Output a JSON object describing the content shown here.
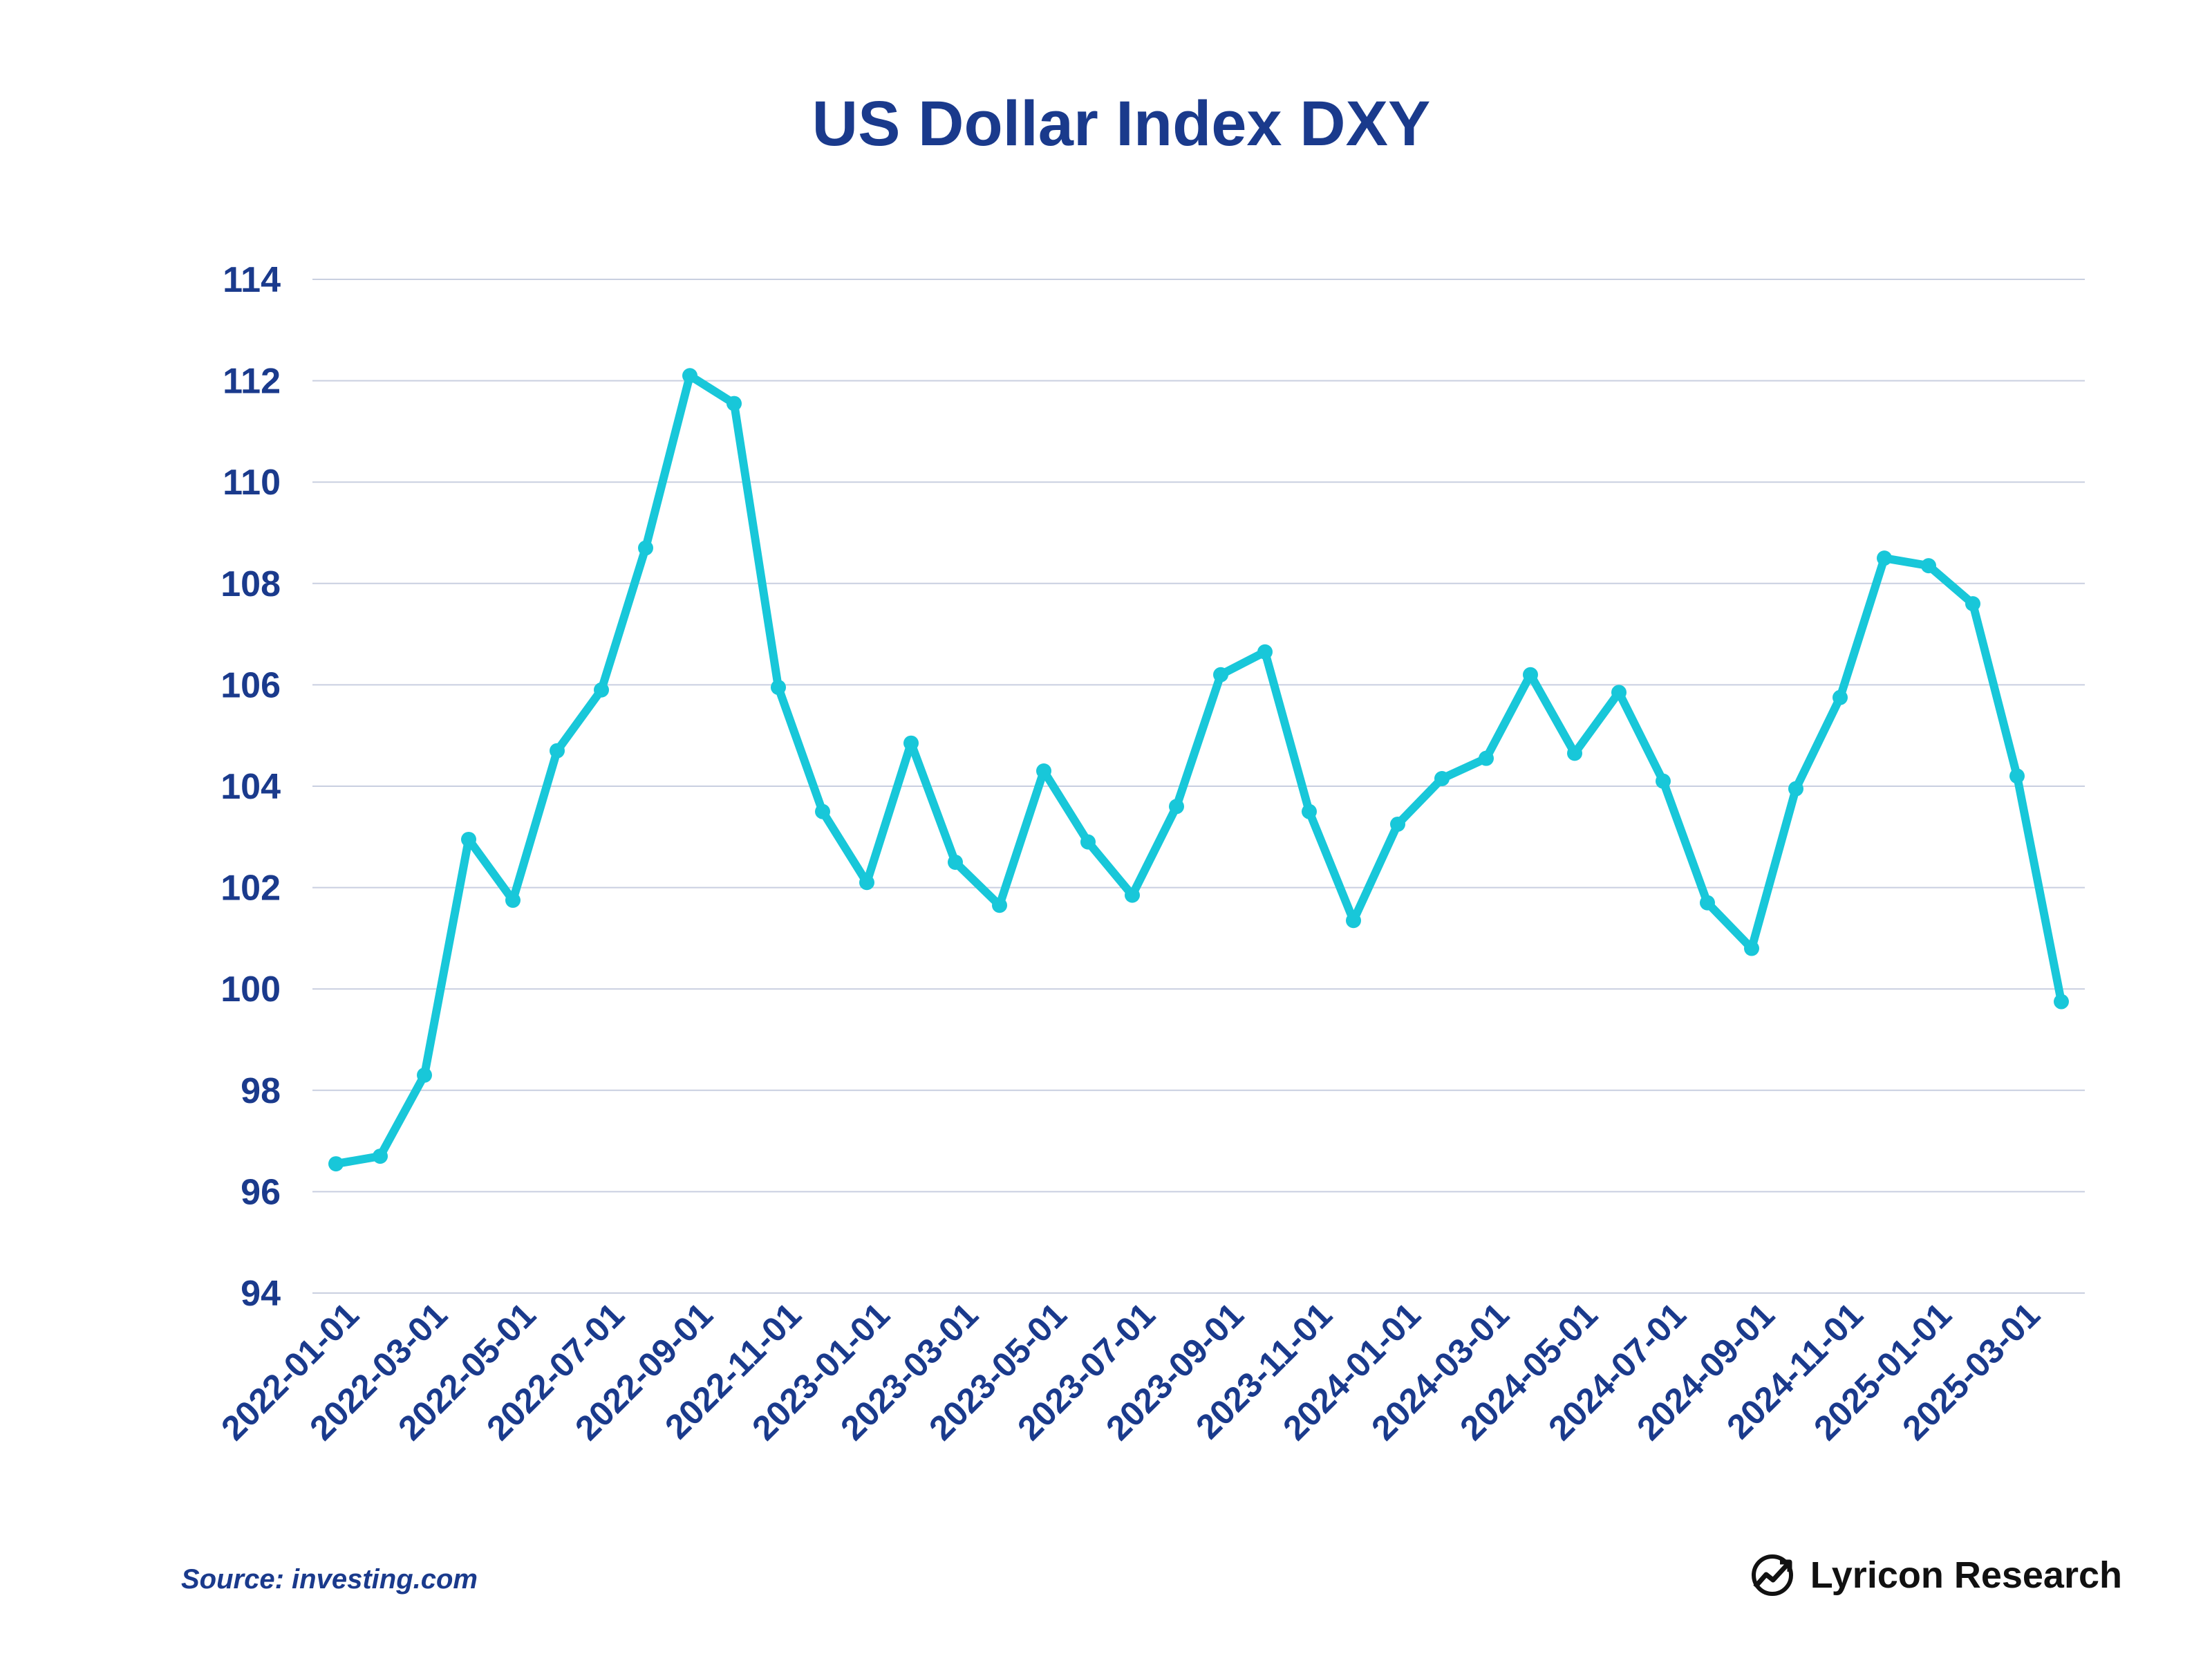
{
  "colors": {
    "line": "#18c7d9",
    "text": "#1a3a8c",
    "grid": "#c9cfe0"
  },
  "footer": {
    "source": "Source: investing.com",
    "brand": "Lyricon Research",
    "brand_icon": "trend-chart-icon"
  },
  "chart_data": {
    "type": "line",
    "title": "US Dollar Index DXY",
    "xlabel": "",
    "ylabel": "",
    "ylim": [
      94,
      114
    ],
    "yticks": [
      94,
      96,
      98,
      100,
      102,
      104,
      106,
      108,
      110,
      112,
      114
    ],
    "grid": true,
    "x": [
      "2022-01-01",
      "2022-02-01",
      "2022-03-01",
      "2022-04-01",
      "2022-05-01",
      "2022-06-01",
      "2022-07-01",
      "2022-08-01",
      "2022-09-01",
      "2022-10-01",
      "2022-11-01",
      "2022-12-01",
      "2023-01-01",
      "2023-02-01",
      "2023-03-01",
      "2023-04-01",
      "2023-05-01",
      "2023-06-01",
      "2023-07-01",
      "2023-08-01",
      "2023-09-01",
      "2023-10-01",
      "2023-11-01",
      "2023-12-01",
      "2024-01-01",
      "2024-02-01",
      "2024-03-01",
      "2024-04-01",
      "2024-05-01",
      "2024-06-01",
      "2024-07-01",
      "2024-08-01",
      "2024-09-01",
      "2024-10-01",
      "2024-11-01",
      "2024-12-01",
      "2025-01-01",
      "2025-02-01",
      "2025-03-01",
      "2025-04-01"
    ],
    "xtick_labels": [
      "2022-01-01",
      "2022-03-01",
      "2022-05-01",
      "2022-07-01",
      "2022-09-01",
      "2022-11-01",
      "2023-01-01",
      "2023-03-01",
      "2023-05-01",
      "2023-07-01",
      "2023-09-01",
      "2023-11-01",
      "2024-01-01",
      "2024-03-01",
      "2024-05-01",
      "2024-07-01",
      "2024-09-01",
      "2024-11-01",
      "2025-01-01",
      "2025-03-01"
    ],
    "series": [
      {
        "values": [
          96.55,
          96.7,
          98.3,
          102.95,
          101.75,
          104.7,
          105.9,
          108.7,
          112.1,
          111.55,
          105.95,
          103.5,
          102.1,
          104.85,
          102.5,
          101.65,
          104.3,
          102.9,
          101.85,
          103.6,
          106.2,
          106.65,
          103.5,
          101.35,
          103.25,
          104.15,
          104.55,
          106.2,
          104.65,
          105.85,
          104.1,
          101.7,
          100.8,
          103.95,
          105.75,
          108.5,
          108.35,
          107.6,
          104.2,
          99.75
        ]
      }
    ]
  }
}
